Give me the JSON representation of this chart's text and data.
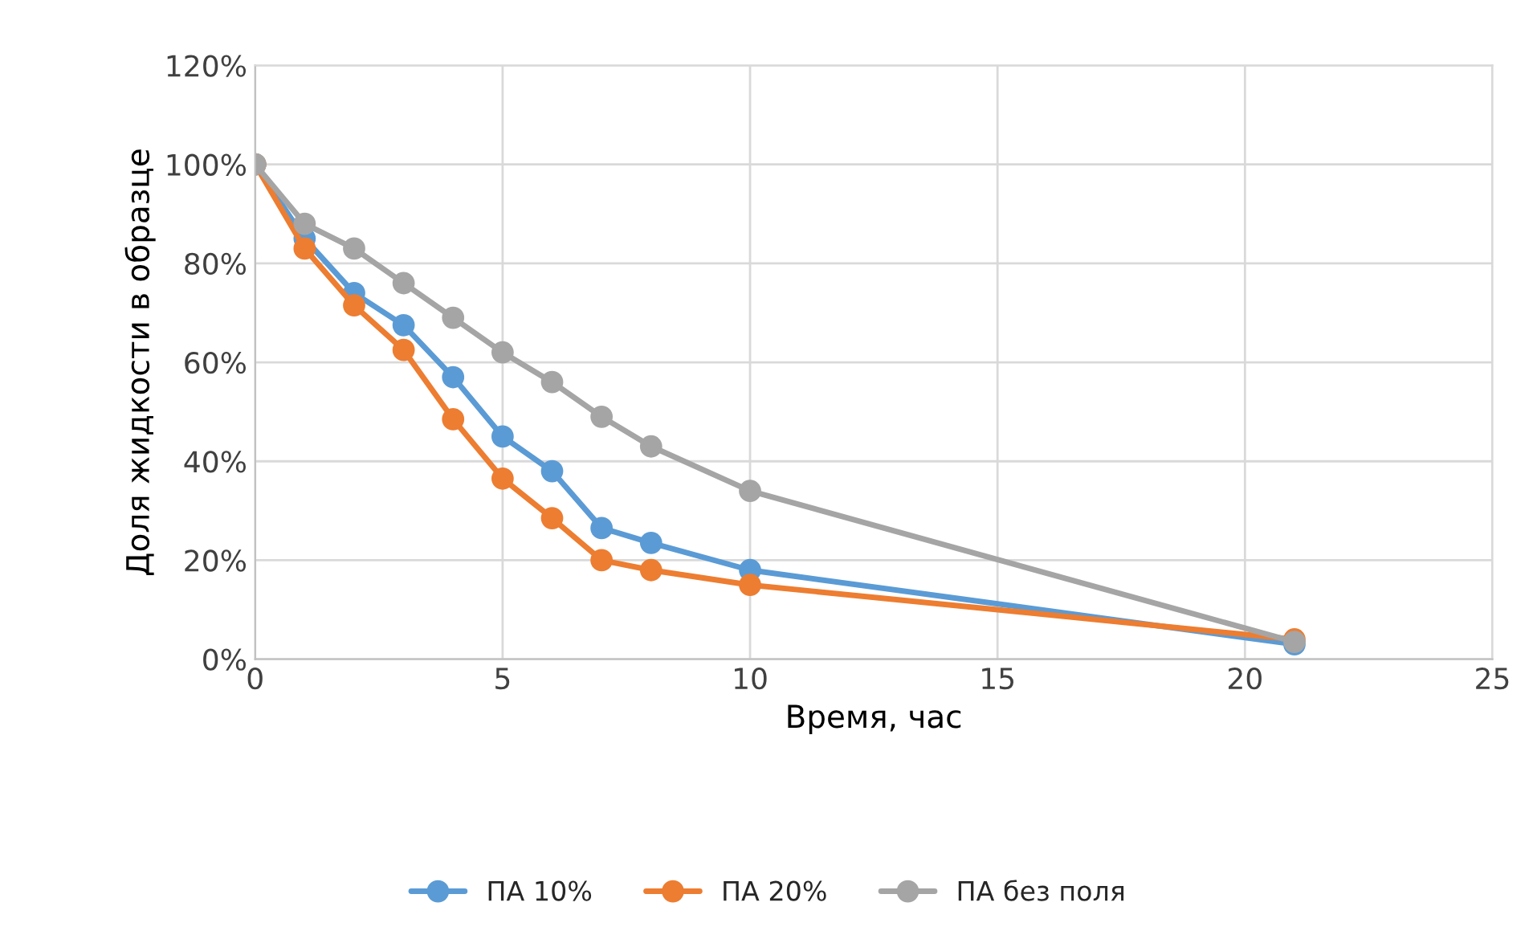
{
  "chart_data": {
    "type": "line",
    "xlabel": "Время, час",
    "ylabel": "Доля жидкости в образце",
    "x": [
      0,
      1,
      2,
      3,
      4,
      5,
      6,
      7,
      8,
      10,
      21
    ],
    "series": [
      {
        "name": "ПА 10%",
        "color": "#5b9bd5",
        "values": [
          100,
          85,
          74,
          67.5,
          57,
          45,
          38,
          26.5,
          23.5,
          18,
          3
        ]
      },
      {
        "name": "ПА 20%",
        "color": "#ed7d31",
        "values": [
          100,
          83,
          71.5,
          62.5,
          48.5,
          36.5,
          28.5,
          20,
          18,
          15,
          4
        ]
      },
      {
        "name": "ПА без поля",
        "color": "#a5a5a5",
        "values": [
          100,
          88,
          83,
          76,
          69,
          62,
          56,
          49,
          43,
          34,
          3.5
        ]
      }
    ],
    "xlim": [
      0,
      25
    ],
    "xticks": [
      0,
      5,
      10,
      15,
      20,
      25
    ],
    "ylim": [
      0,
      120
    ],
    "yticks": [
      {
        "value": 0,
        "label": "0%"
      },
      {
        "value": 20,
        "label": "20%"
      },
      {
        "value": 40,
        "label": "40%"
      },
      {
        "value": 60,
        "label": "60%"
      },
      {
        "value": 80,
        "label": "80%"
      },
      {
        "value": 100,
        "label": "100%"
      },
      {
        "value": 120,
        "label": "120%"
      }
    ],
    "grid": true,
    "legend": "bottom",
    "marker": "circle",
    "line_style": "solid"
  }
}
